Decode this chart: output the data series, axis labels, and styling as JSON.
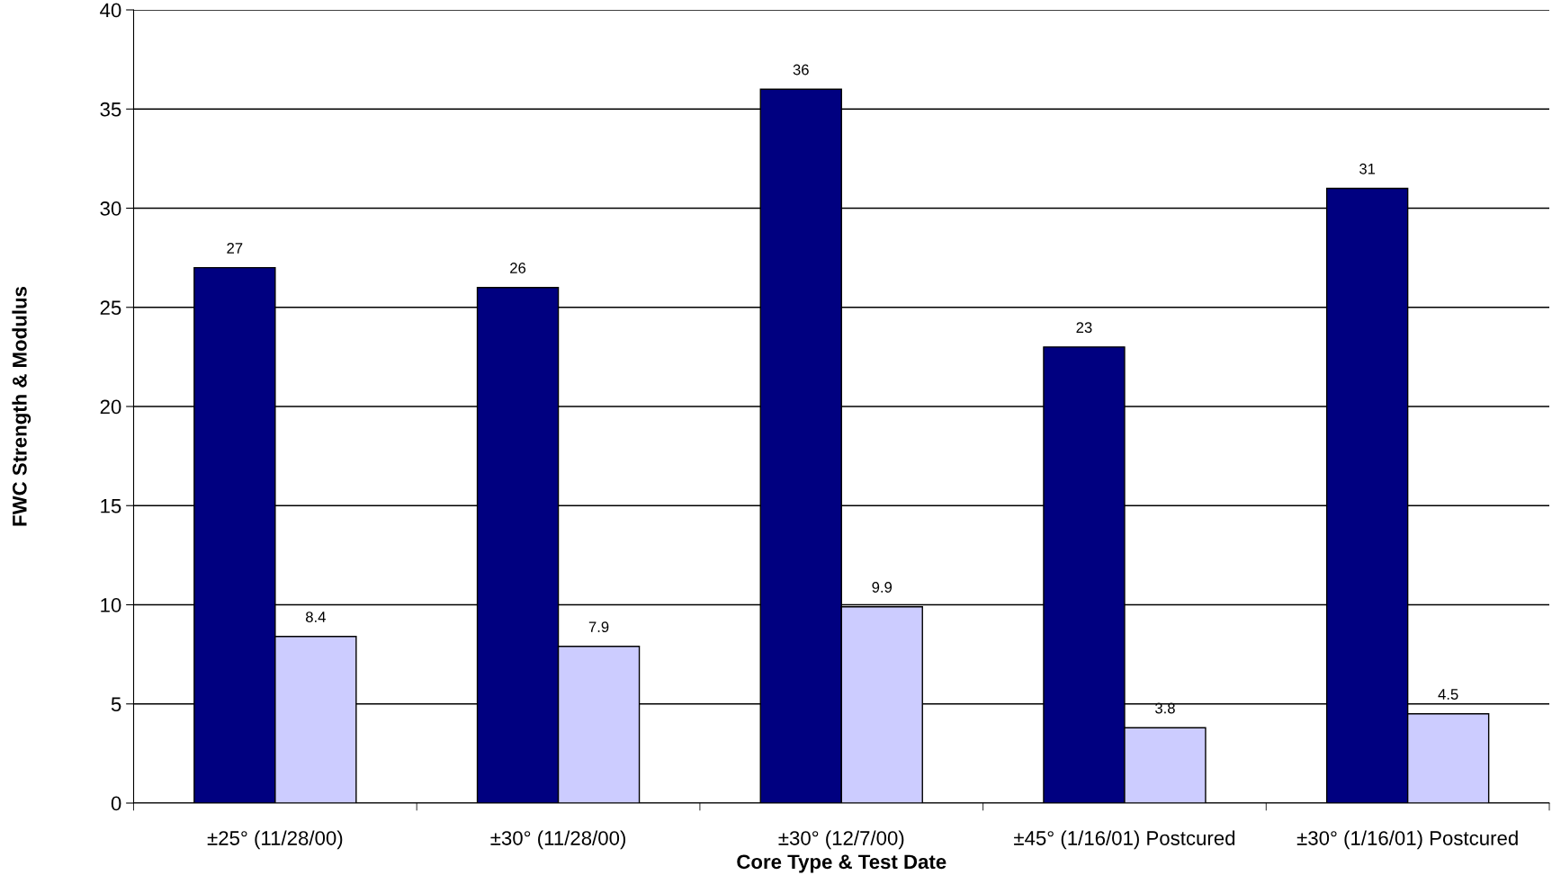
{
  "chart_data": {
    "type": "bar",
    "xlabel": "Core Type & Test Date",
    "ylabel": "FWC Strength & Modulus",
    "categories": [
      "±25° (11/28/00)",
      "±30° (11/28/00)",
      "±30° (12/7/00)",
      "±45° (1/16/01) Postcured",
      "±30° (1/16/01) Postcured"
    ],
    "series": [
      {
        "color": "#000080",
        "values": [
          27,
          26,
          36,
          23,
          31
        ]
      },
      {
        "color": "#ccccff",
        "values": [
          8.4,
          7.9,
          9.9,
          3.8,
          4.5
        ]
      }
    ],
    "ylim": [
      0,
      40
    ],
    "yticks": [
      0,
      5,
      10,
      15,
      20,
      25,
      30,
      35,
      40
    ],
    "grid": "y",
    "data_labels": true
  }
}
